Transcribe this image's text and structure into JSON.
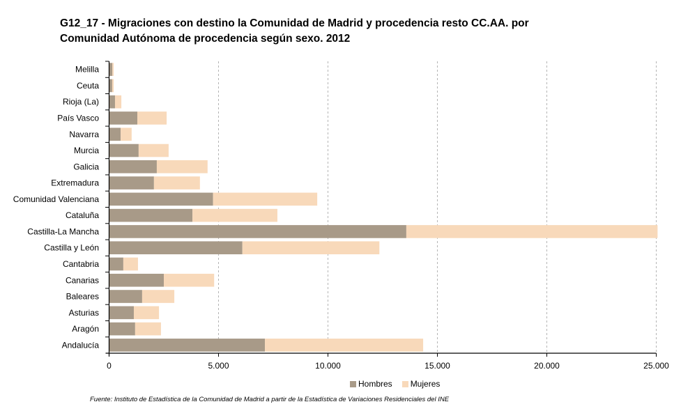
{
  "title": {
    "line1": "G12_17 - Migraciones con destino la Comunidad de Madrid y procedencia resto CC.AA. por",
    "line2": "Comunidad Autónoma de procedencia según sexo. 2012"
  },
  "source": "Fuente: Instituto de Estadística de la Comunidad de Madrid a partir de la Estadística de Variaciones Residenciales del INE",
  "chart_data": {
    "type": "bar",
    "orientation": "horizontal",
    "stacked": true,
    "title": "G12_17 - Migraciones con destino la Comunidad de Madrid y procedencia resto CC.AA. por Comunidad Autónoma de procedencia según sexo. 2012",
    "xlabel": "",
    "ylabel": "",
    "xlim": [
      0,
      25000
    ],
    "xticks": [
      0,
      5000,
      10000,
      15000,
      20000,
      25000
    ],
    "xtick_labels": [
      "0",
      "5.000",
      "10.000",
      "15.000",
      "20.000",
      "25.000"
    ],
    "grid": "vertical-dashed",
    "legend_position": "bottom",
    "categories": [
      "Melilla",
      "Ceuta",
      "Rioja (La)",
      "País Vasco",
      "Navarra",
      "Murcia",
      "Galicia",
      "Extremadura",
      "Comunidad Valenciana",
      "Cataluña",
      "Castilla-La Mancha",
      "Castilla y León",
      "Cantabria",
      "Canarias",
      "Baleares",
      "Asturias",
      "Aragón",
      "Andalucía"
    ],
    "series": [
      {
        "name": "Hombres",
        "color": "#a89a88",
        "values": [
          150,
          140,
          270,
          1290,
          530,
          1350,
          2180,
          2050,
          4750,
          3810,
          13580,
          6090,
          650,
          2500,
          1510,
          1130,
          1190,
          7120
        ]
      },
      {
        "name": "Mujeres",
        "color": "#f8d9ba",
        "values": [
          60,
          70,
          290,
          1340,
          500,
          1370,
          2320,
          2100,
          4760,
          3880,
          11480,
          6260,
          670,
          2300,
          1470,
          1150,
          1180,
          7230
        ]
      }
    ]
  }
}
